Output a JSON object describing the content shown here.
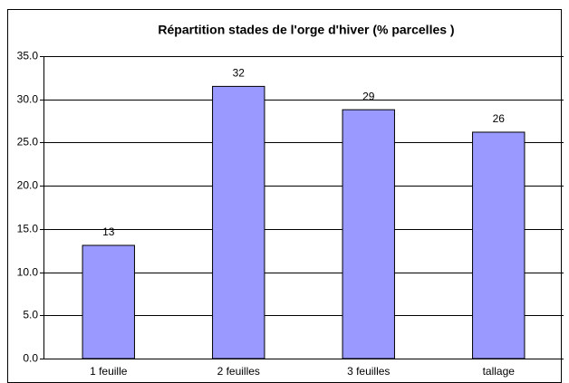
{
  "chart_data": {
    "type": "bar",
    "title": "Répartition stades de l'orge d'hiver (% parcelles )",
    "categories": [
      "1 feuille",
      "2 feuilles",
      "3 feuilles",
      "tallage"
    ],
    "values": [
      13.1,
      31.5,
      28.8,
      26.2
    ],
    "value_labels": [
      "13",
      "32",
      "29",
      "26"
    ],
    "color": "#9999ff",
    "ylim": [
      0,
      35
    ],
    "yticks": [
      {
        "value": 0,
        "label": "0.0"
      },
      {
        "value": 5,
        "label": "5.0"
      },
      {
        "value": 10,
        "label": "10.0"
      },
      {
        "value": 15,
        "label": "15.0"
      },
      {
        "value": 20,
        "label": "20.0"
      },
      {
        "value": 25,
        "label": "25.0"
      },
      {
        "value": 30,
        "label": "30.0"
      },
      {
        "value": 35,
        "label": "35.0"
      }
    ],
    "grid": true
  }
}
